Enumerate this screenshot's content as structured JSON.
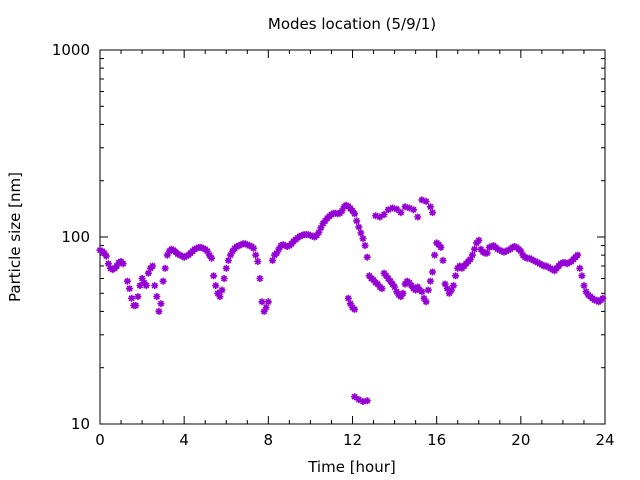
{
  "chart_data": {
    "type": "scatter",
    "title": "Modes location (5/9/1)",
    "xlabel": "Time [hour]",
    "ylabel": "Particle size [nm]",
    "xlim": [
      0,
      24
    ],
    "ylim": [
      10,
      1000
    ],
    "yscale": "log",
    "xticks": [
      0,
      4,
      8,
      12,
      16,
      20,
      24
    ],
    "xtick_labels": [
      "0",
      "4",
      "8",
      "12",
      "16",
      "20",
      "24"
    ],
    "yticks": [
      10,
      100,
      1000
    ],
    "ytick_labels": [
      "10",
      "100",
      "1000"
    ],
    "grid": false,
    "legend": "none",
    "marker_color": "#9400d3",
    "series": [
      {
        "marker": "asterisk",
        "points": [
          [
            0.0,
            85
          ],
          [
            0.1,
            84
          ],
          [
            0.2,
            82
          ],
          [
            0.3,
            79
          ],
          [
            0.4,
            72
          ],
          [
            0.5,
            68
          ],
          [
            0.6,
            67
          ],
          [
            0.7,
            68
          ],
          [
            0.8,
            70
          ],
          [
            0.9,
            73
          ],
          [
            1.0,
            74
          ],
          [
            1.1,
            72
          ],
          [
            1.3,
            58
          ],
          [
            1.4,
            53
          ],
          [
            1.5,
            47
          ],
          [
            1.6,
            43
          ],
          [
            1.7,
            43
          ],
          [
            1.8,
            48
          ],
          [
            1.9,
            55
          ],
          [
            2.0,
            60
          ],
          [
            2.1,
            57
          ],
          [
            2.2,
            55
          ],
          [
            2.3,
            64
          ],
          [
            2.4,
            68
          ],
          [
            2.5,
            70
          ],
          [
            2.6,
            55
          ],
          [
            2.7,
            48
          ],
          [
            2.8,
            40
          ],
          [
            2.9,
            44
          ],
          [
            3.0,
            58
          ],
          [
            3.1,
            68
          ],
          [
            3.2,
            80
          ],
          [
            3.3,
            84
          ],
          [
            3.4,
            86
          ],
          [
            3.5,
            85
          ],
          [
            3.6,
            83
          ],
          [
            3.7,
            81
          ],
          [
            3.8,
            80
          ],
          [
            3.9,
            79
          ],
          [
            4.0,
            78
          ],
          [
            4.1,
            79
          ],
          [
            4.2,
            80
          ],
          [
            4.3,
            82
          ],
          [
            4.4,
            84
          ],
          [
            4.5,
            86
          ],
          [
            4.6,
            87
          ],
          [
            4.7,
            88
          ],
          [
            4.8,
            88
          ],
          [
            4.9,
            87
          ],
          [
            5.0,
            86
          ],
          [
            5.1,
            84
          ],
          [
            5.2,
            80
          ],
          [
            5.3,
            77
          ],
          [
            5.4,
            62
          ],
          [
            5.5,
            55
          ],
          [
            5.6,
            50
          ],
          [
            5.7,
            48
          ],
          [
            5.8,
            52
          ],
          [
            5.9,
            60
          ],
          [
            6.0,
            68
          ],
          [
            6.1,
            75
          ],
          [
            6.2,
            80
          ],
          [
            6.3,
            84
          ],
          [
            6.4,
            87
          ],
          [
            6.5,
            89
          ],
          [
            6.6,
            90
          ],
          [
            6.7,
            91
          ],
          [
            6.8,
            92
          ],
          [
            6.9,
            92
          ],
          [
            7.0,
            91
          ],
          [
            7.1,
            90
          ],
          [
            7.2,
            89
          ],
          [
            7.3,
            87
          ],
          [
            7.4,
            80
          ],
          [
            7.5,
            74
          ],
          [
            7.6,
            60
          ],
          [
            7.7,
            45
          ],
          [
            7.8,
            40
          ],
          [
            7.9,
            42
          ],
          [
            8.0,
            45
          ],
          [
            8.2,
            75
          ],
          [
            8.3,
            80
          ],
          [
            8.4,
            82
          ],
          [
            8.5,
            86
          ],
          [
            8.6,
            90
          ],
          [
            8.7,
            91
          ],
          [
            8.8,
            90
          ],
          [
            8.9,
            89
          ],
          [
            9.0,
            90
          ],
          [
            9.1,
            92
          ],
          [
            9.2,
            95
          ],
          [
            9.3,
            97
          ],
          [
            9.4,
            99
          ],
          [
            9.5,
            101
          ],
          [
            9.6,
            102
          ],
          [
            9.7,
            103
          ],
          [
            9.8,
            103
          ],
          [
            9.9,
            103
          ],
          [
            10.0,
            102
          ],
          [
            10.1,
            101
          ],
          [
            10.2,
            100
          ],
          [
            10.3,
            102
          ],
          [
            10.4,
            106
          ],
          [
            10.5,
            112
          ],
          [
            10.6,
            118
          ],
          [
            10.7,
            122
          ],
          [
            10.8,
            126
          ],
          [
            10.9,
            129
          ],
          [
            11.0,
            132
          ],
          [
            11.1,
            134
          ],
          [
            11.2,
            134
          ],
          [
            11.3,
            133
          ],
          [
            11.4,
            134
          ],
          [
            11.5,
            138
          ],
          [
            11.6,
            145
          ],
          [
            11.7,
            148
          ],
          [
            11.8,
            146
          ],
          [
            11.9,
            142
          ],
          [
            12.0,
            138
          ],
          [
            12.1,
            133
          ],
          [
            12.2,
            122
          ],
          [
            12.3,
            113
          ],
          [
            12.4,
            105
          ],
          [
            12.5,
            98
          ],
          [
            12.6,
            90
          ],
          [
            11.8,
            47
          ],
          [
            11.9,
            44
          ],
          [
            12.0,
            42
          ],
          [
            12.1,
            41
          ],
          [
            12.1,
            14
          ],
          [
            12.3,
            13.5
          ],
          [
            12.5,
            13.2
          ],
          [
            12.7,
            13.3
          ],
          [
            12.7,
            78
          ],
          [
            12.8,
            62
          ],
          [
            12.9,
            60
          ],
          [
            13.0,
            59
          ],
          [
            13.1,
            57
          ],
          [
            13.2,
            56
          ],
          [
            13.3,
            54
          ],
          [
            13.4,
            53
          ],
          [
            13.5,
            64
          ],
          [
            13.6,
            62
          ],
          [
            13.7,
            60
          ],
          [
            13.8,
            58
          ],
          [
            13.9,
            56
          ],
          [
            14.0,
            54
          ],
          [
            14.1,
            51
          ],
          [
            14.2,
            49
          ],
          [
            14.3,
            48
          ],
          [
            14.4,
            50
          ],
          [
            14.5,
            56
          ],
          [
            14.6,
            58
          ],
          [
            14.7,
            57
          ],
          [
            14.8,
            55
          ],
          [
            14.9,
            53
          ],
          [
            15.0,
            52
          ],
          [
            15.1,
            54
          ],
          [
            15.2,
            52
          ],
          [
            15.3,
            51
          ],
          [
            15.4,
            47
          ],
          [
            15.5,
            45
          ],
          [
            15.6,
            52
          ],
          [
            15.7,
            58
          ],
          [
            13.1,
            130
          ],
          [
            13.3,
            128
          ],
          [
            13.5,
            132
          ],
          [
            13.7,
            140
          ],
          [
            13.9,
            143
          ],
          [
            14.1,
            141
          ],
          [
            14.3,
            135
          ],
          [
            14.5,
            145
          ],
          [
            14.7,
            143
          ],
          [
            14.9,
            140
          ],
          [
            15.1,
            128
          ],
          [
            15.3,
            158
          ],
          [
            15.5,
            155
          ],
          [
            15.7,
            145
          ],
          [
            15.8,
            135
          ],
          [
            15.8,
            65
          ],
          [
            15.9,
            80
          ],
          [
            16.0,
            93
          ],
          [
            16.1,
            91
          ],
          [
            16.2,
            88
          ],
          [
            16.3,
            75
          ],
          [
            16.4,
            56
          ],
          [
            16.5,
            53
          ],
          [
            16.6,
            50
          ],
          [
            16.7,
            52
          ],
          [
            16.8,
            55
          ],
          [
            16.9,
            62
          ],
          [
            17.0,
            68
          ],
          [
            17.1,
            70
          ],
          [
            17.2,
            68
          ],
          [
            17.3,
            70
          ],
          [
            17.4,
            72
          ],
          [
            17.5,
            74
          ],
          [
            17.6,
            76
          ],
          [
            17.7,
            80
          ],
          [
            17.8,
            86
          ],
          [
            17.9,
            93
          ],
          [
            18.0,
            96
          ],
          [
            18.1,
            86
          ],
          [
            18.2,
            83
          ],
          [
            18.3,
            82
          ],
          [
            18.4,
            82
          ],
          [
            18.5,
            88
          ],
          [
            18.6,
            89
          ],
          [
            18.7,
            90
          ],
          [
            18.8,
            88
          ],
          [
            18.9,
            86
          ],
          [
            19.0,
            85
          ],
          [
            19.1,
            84
          ],
          [
            19.2,
            83
          ],
          [
            19.3,
            84
          ],
          [
            19.4,
            85
          ],
          [
            19.5,
            86
          ],
          [
            19.6,
            88
          ],
          [
            19.7,
            89
          ],
          [
            19.8,
            88
          ],
          [
            19.9,
            86
          ],
          [
            20.0,
            84
          ],
          [
            20.1,
            80
          ],
          [
            20.2,
            78
          ],
          [
            20.3,
            77
          ],
          [
            20.4,
            77
          ],
          [
            20.5,
            76
          ],
          [
            20.6,
            75
          ],
          [
            20.7,
            74
          ],
          [
            20.8,
            73
          ],
          [
            20.9,
            72
          ],
          [
            21.0,
            71
          ],
          [
            21.1,
            70
          ],
          [
            21.2,
            70
          ],
          [
            21.3,
            69
          ],
          [
            21.4,
            68
          ],
          [
            21.5,
            67
          ],
          [
            21.6,
            66
          ],
          [
            21.7,
            68
          ],
          [
            21.8,
            70
          ],
          [
            21.9,
            72
          ],
          [
            22.0,
            73
          ],
          [
            22.1,
            73
          ],
          [
            22.2,
            72
          ],
          [
            22.3,
            73
          ],
          [
            22.4,
            74
          ],
          [
            22.5,
            76
          ],
          [
            22.6,
            78
          ],
          [
            22.7,
            80
          ],
          [
            22.8,
            68
          ],
          [
            22.9,
            62
          ],
          [
            23.0,
            55
          ],
          [
            23.1,
            51
          ],
          [
            23.2,
            49
          ],
          [
            23.3,
            48
          ],
          [
            23.4,
            47
          ],
          [
            23.5,
            46
          ],
          [
            23.6,
            46
          ],
          [
            23.7,
            45
          ],
          [
            23.8,
            46
          ],
          [
            23.9,
            47
          ]
        ]
      }
    ]
  }
}
